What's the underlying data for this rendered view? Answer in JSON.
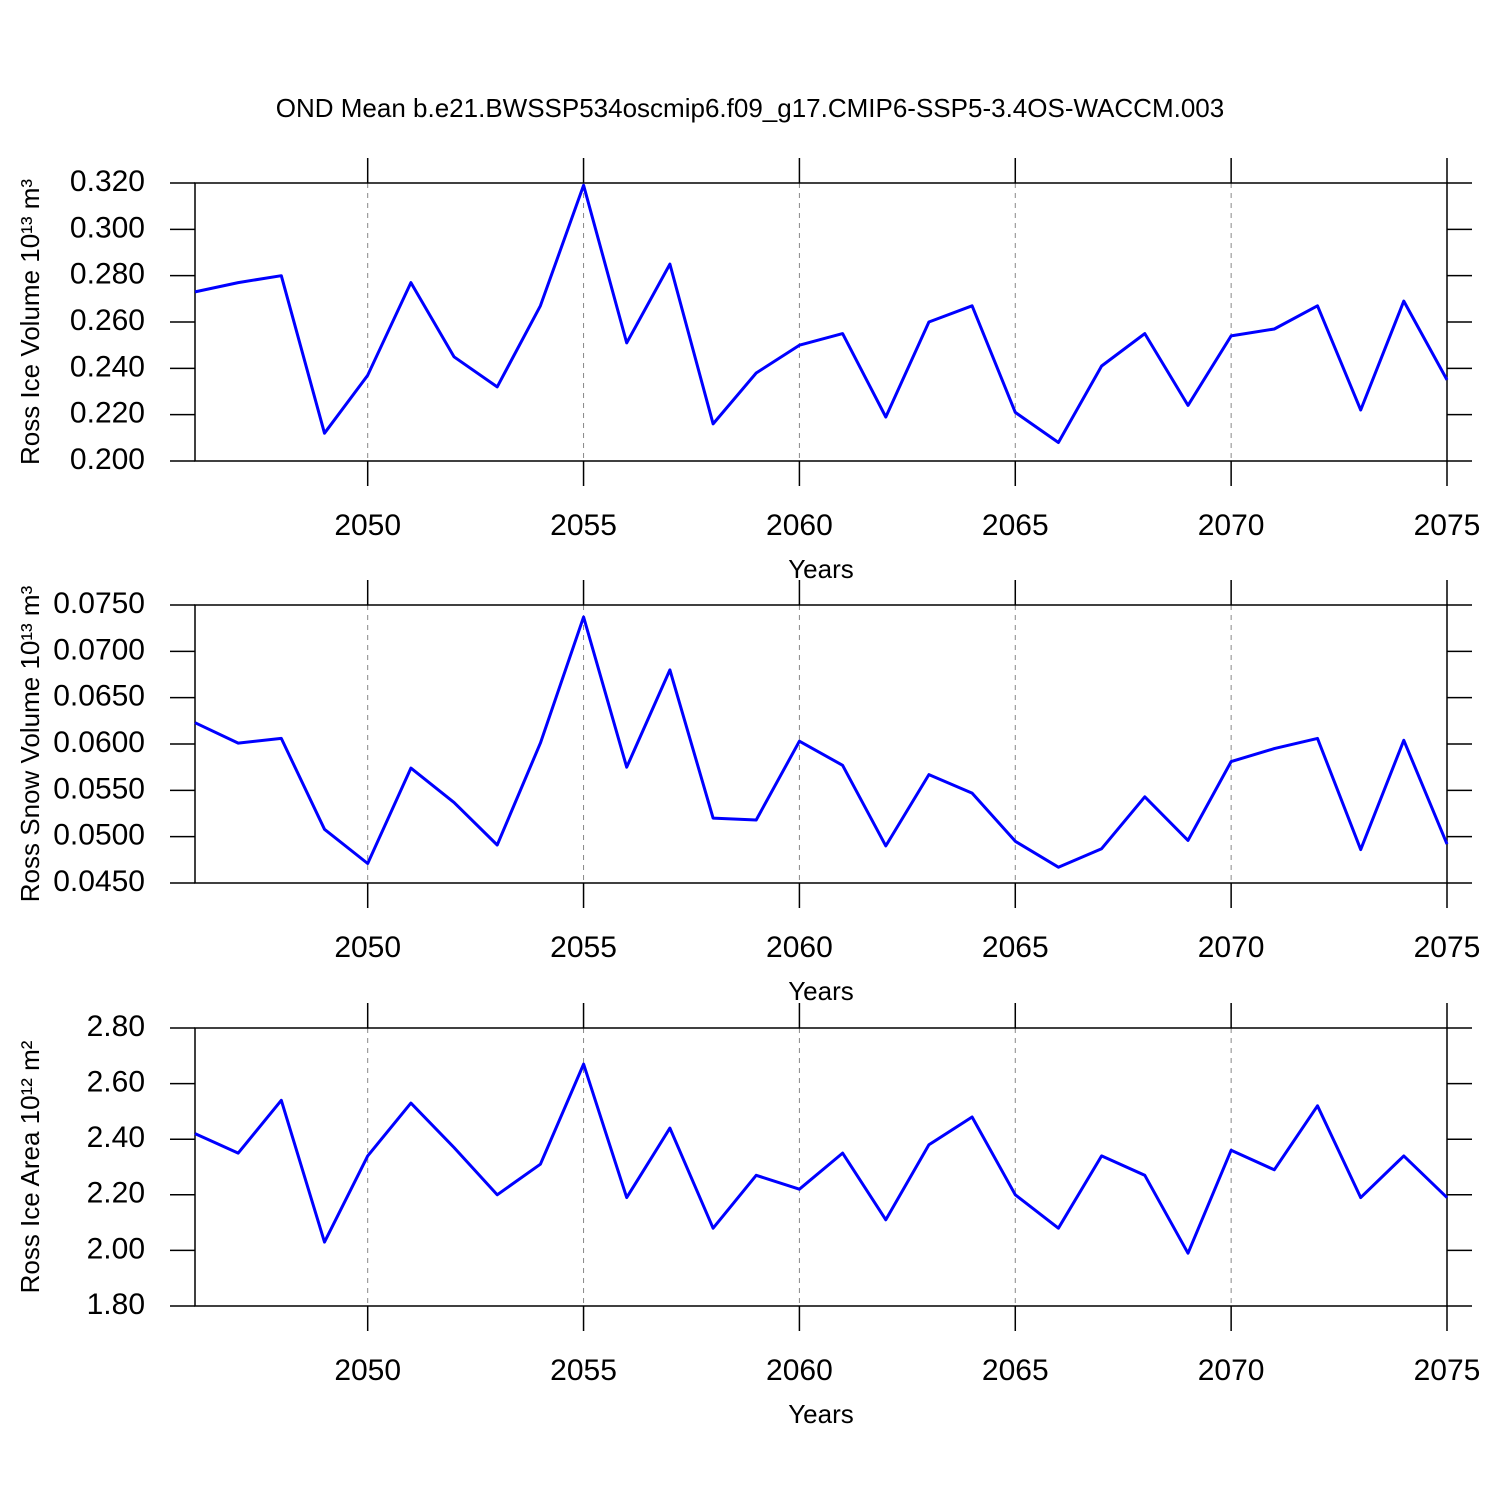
{
  "chart_data": [
    {
      "type": "line",
      "title": "OND Mean b.e21.BWSSP534oscmip6.f09_g17.CMIP6-SSP5-3.4OS-WACCM.003",
      "ylabel": "Ross Ice Volume 10¹³ m³",
      "xlabel": "Years",
      "color": "#0000ff",
      "xgrid": true,
      "x": [
        2046,
        2047,
        2048,
        2049,
        2050,
        2051,
        2052,
        2053,
        2054,
        2055,
        2056,
        2057,
        2058,
        2059,
        2060,
        2061,
        2062,
        2063,
        2064,
        2065,
        2066,
        2067,
        2068,
        2069,
        2070,
        2071,
        2072,
        2073,
        2074,
        2075
      ],
      "values": [
        0.273,
        0.277,
        0.28,
        0.212,
        0.237,
        0.277,
        0.245,
        0.232,
        0.267,
        0.319,
        0.251,
        0.285,
        0.216,
        0.238,
        0.25,
        0.255,
        0.219,
        0.26,
        0.267,
        0.221,
        0.208,
        0.241,
        0.255,
        0.224,
        0.254,
        0.257,
        0.267,
        0.222,
        0.269,
        0.235
      ],
      "xlim": [
        2046,
        2075
      ],
      "xticks": [
        2050,
        2055,
        2060,
        2065,
        2070,
        2075
      ],
      "ylim": [
        0.2,
        0.32
      ],
      "yticks": [
        {
          "value": 0.2,
          "label": "0.200"
        },
        {
          "value": 0.22,
          "label": "0.220"
        },
        {
          "value": 0.24,
          "label": "0.240"
        },
        {
          "value": 0.26,
          "label": "0.260"
        },
        {
          "value": 0.28,
          "label": "0.280"
        },
        {
          "value": 0.3,
          "label": "0.300"
        },
        {
          "value": 0.32,
          "label": "0.320"
        }
      ]
    },
    {
      "type": "line",
      "ylabel": "Ross Snow Volume 10¹³ m³",
      "xlabel": "Years",
      "color": "#0000ff",
      "xgrid": true,
      "x": [
        2046,
        2047,
        2048,
        2049,
        2050,
        2051,
        2052,
        2053,
        2054,
        2055,
        2056,
        2057,
        2058,
        2059,
        2060,
        2061,
        2062,
        2063,
        2064,
        2065,
        2066,
        2067,
        2068,
        2069,
        2070,
        2071,
        2072,
        2073,
        2074,
        2075
      ],
      "values": [
        0.0623,
        0.0601,
        0.0606,
        0.0508,
        0.0471,
        0.0574,
        0.0537,
        0.0491,
        0.0601,
        0.0737,
        0.0575,
        0.068,
        0.052,
        0.0518,
        0.0603,
        0.0577,
        0.049,
        0.0567,
        0.0547,
        0.0495,
        0.0467,
        0.0487,
        0.0543,
        0.0496,
        0.0581,
        0.0595,
        0.0606,
        0.0486,
        0.0604,
        0.0492
      ],
      "xlim": [
        2046,
        2075
      ],
      "xticks": [
        2050,
        2055,
        2060,
        2065,
        2070,
        2075
      ],
      "ylim": [
        0.045,
        0.075
      ],
      "yticks": [
        {
          "value": 0.045,
          "label": "0.0450"
        },
        {
          "value": 0.05,
          "label": "0.0500"
        },
        {
          "value": 0.055,
          "label": "0.0550"
        },
        {
          "value": 0.06,
          "label": "0.0600"
        },
        {
          "value": 0.065,
          "label": "0.0650"
        },
        {
          "value": 0.07,
          "label": "0.0700"
        },
        {
          "value": 0.075,
          "label": "0.0750"
        }
      ]
    },
    {
      "type": "line",
      "ylabel": "Ross Ice Area 10¹² m²",
      "xlabel": "Years",
      "color": "#0000ff",
      "xgrid": true,
      "x": [
        2046,
        2047,
        2048,
        2049,
        2050,
        2051,
        2052,
        2053,
        2054,
        2055,
        2056,
        2057,
        2058,
        2059,
        2060,
        2061,
        2062,
        2063,
        2064,
        2065,
        2066,
        2067,
        2068,
        2069,
        2070,
        2071,
        2072,
        2073,
        2074,
        2075
      ],
      "values": [
        2.42,
        2.35,
        2.54,
        2.03,
        2.34,
        2.53,
        2.37,
        2.2,
        2.31,
        2.67,
        2.19,
        2.44,
        2.08,
        2.27,
        2.22,
        2.35,
        2.11,
        2.38,
        2.48,
        2.2,
        2.08,
        2.34,
        2.27,
        1.99,
        2.36,
        2.29,
        2.52,
        2.19,
        2.34,
        2.19
      ],
      "xlim": [
        2046,
        2075
      ],
      "xticks": [
        2050,
        2055,
        2060,
        2065,
        2070,
        2075
      ],
      "ylim": [
        1.8,
        2.8
      ],
      "yticks": [
        {
          "value": 1.8,
          "label": "1.80"
        },
        {
          "value": 2.0,
          "label": "2.00"
        },
        {
          "value": 2.2,
          "label": "2.20"
        },
        {
          "value": 2.4,
          "label": "2.40"
        },
        {
          "value": 2.6,
          "label": "2.60"
        },
        {
          "value": 2.8,
          "label": "2.80"
        }
      ]
    }
  ]
}
